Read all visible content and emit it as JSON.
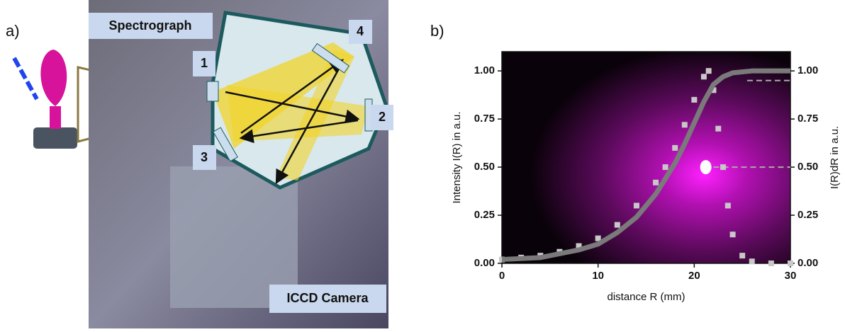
{
  "figure": {
    "panel_a_label": "a)",
    "panel_b_label": "b)",
    "photo_labels": {
      "spectrograph": "Spectrograph",
      "camera": "ICCD Camera",
      "m1": "1",
      "m2": "2",
      "m3": "3",
      "m4": "4"
    }
  },
  "chart_data": {
    "type": "line",
    "xlabel": "distance R (mm)",
    "ylabel": "Intensity I(R) in a.u.",
    "y2label": "I(R)dR in a.u.",
    "xlim": [
      0,
      30
    ],
    "xticks": [
      0,
      10,
      20,
      30
    ],
    "ylim": [
      0,
      1.1
    ],
    "yticks": [
      {
        "value": 0,
        "label": "0.00"
      },
      {
        "value": 0.25,
        "label": "0.25"
      },
      {
        "value": 0.5,
        "label": "0.50"
      },
      {
        "value": 0.75,
        "label": "0.75"
      },
      {
        "value": 1,
        "label": "1.00"
      }
    ],
    "y2lim": [
      0,
      1.1
    ],
    "y2ticks": [
      {
        "value": 0,
        "label": "0.00"
      },
      {
        "value": 0.25,
        "label": "0.25"
      },
      {
        "value": 0.5,
        "label": "0.50"
      },
      {
        "value": 0.75,
        "label": "0.75"
      },
      {
        "value": 1,
        "label": "1.00"
      }
    ],
    "series": [
      {
        "style": "markers",
        "color": "#c8c8c8",
        "x": [
          0,
          2,
          4,
          6,
          8,
          10,
          12,
          14,
          16,
          17,
          18,
          19,
          20,
          21,
          21.5,
          22,
          22.5,
          23,
          23.5,
          24,
          25,
          26,
          28,
          30
        ],
        "values": [
          0.02,
          0.03,
          0.04,
          0.06,
          0.09,
          0.13,
          0.2,
          0.3,
          0.42,
          0.5,
          0.6,
          0.72,
          0.85,
          0.97,
          1.0,
          0.9,
          0.7,
          0.5,
          0.3,
          0.15,
          0.04,
          0.01,
          0,
          0
        ]
      },
      {
        "style": "line",
        "axis": "y2",
        "color": "#7a7a7a",
        "x": [
          0,
          4,
          8,
          10,
          12,
          14,
          16,
          18,
          19,
          20,
          21,
          22,
          23,
          24,
          26,
          30
        ],
        "values": [
          0.02,
          0.03,
          0.07,
          0.1,
          0.16,
          0.24,
          0.36,
          0.52,
          0.62,
          0.73,
          0.84,
          0.93,
          0.97,
          0.99,
          1.0,
          1.0
        ]
      }
    ],
    "reference_lines": [
      {
        "y": 0.5,
        "x_start": 22
      },
      {
        "y": 0.95,
        "x_start": 25.5
      }
    ],
    "highlight_point": {
      "x": 21.2,
      "y": 0.5
    }
  }
}
